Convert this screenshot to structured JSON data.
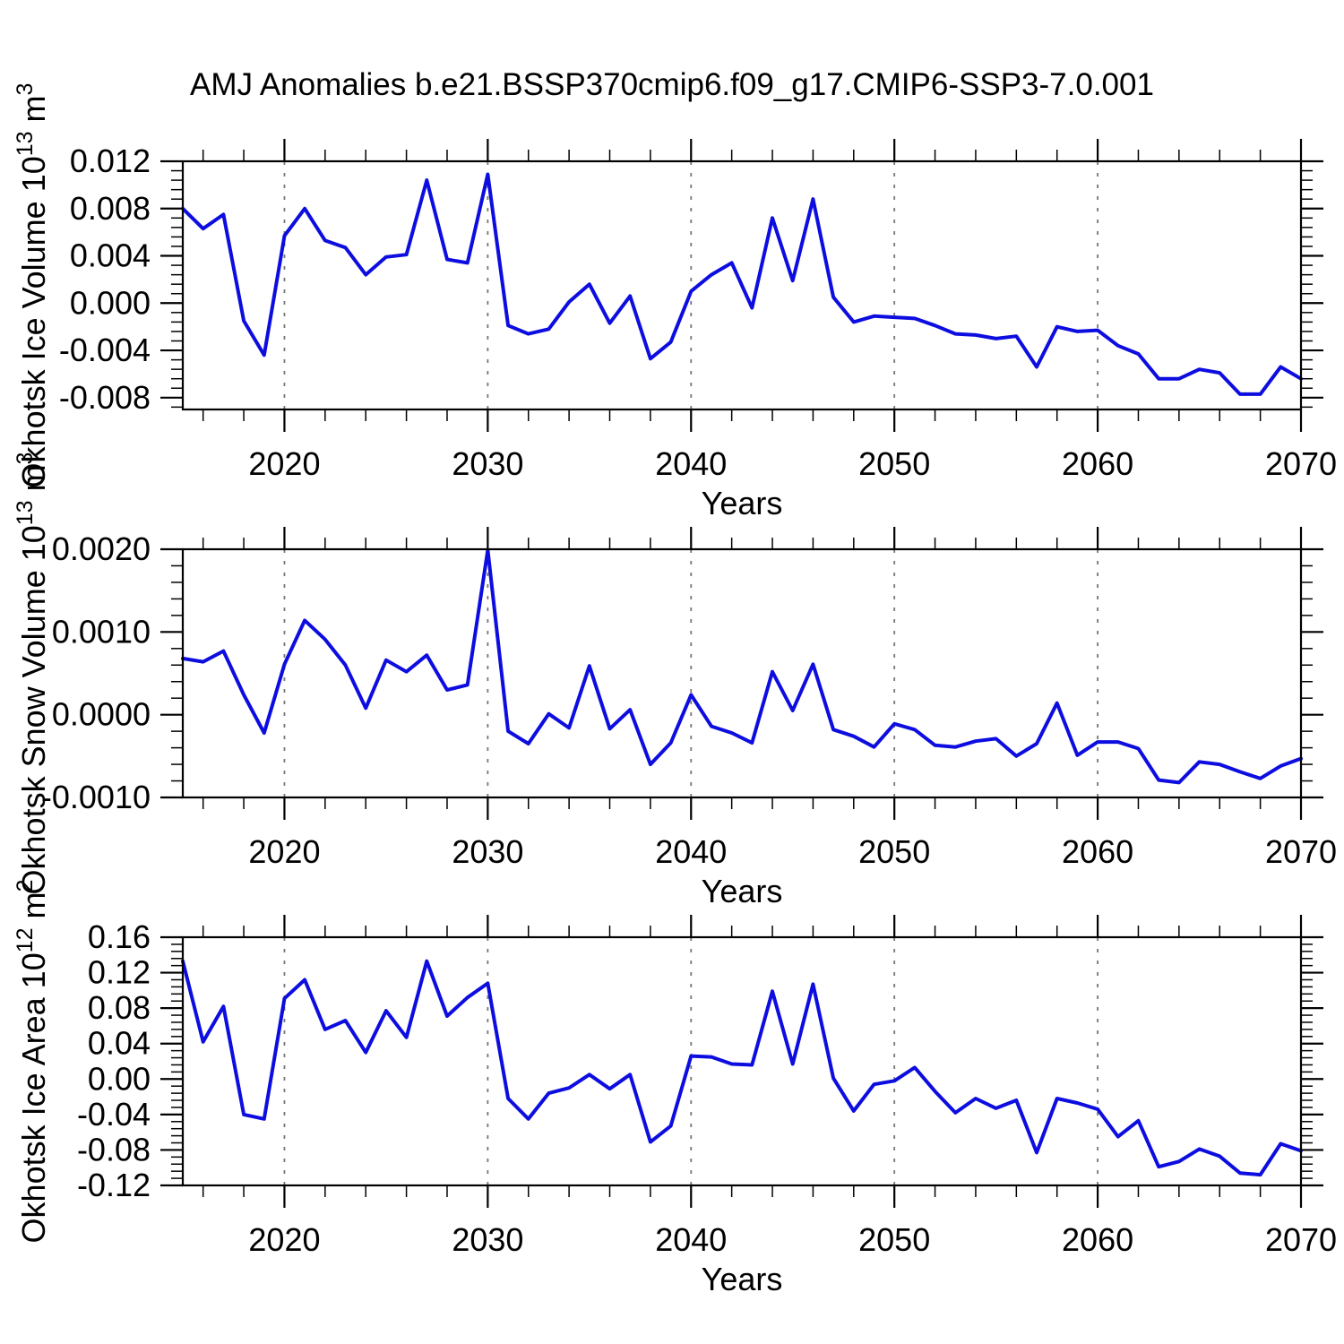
{
  "title": "AMJ Anomalies b.e21.BSSP370cmip6.f09_g17.CMIP6-SSP3-7.0.001",
  "chart_data": [
    {
      "type": "line",
      "name": "okhotsk-ice-volume",
      "xlabel": "Years",
      "ylabel_parts": [
        {
          "t": "Okhotsk Ice Volume 10",
          "sup": false
        },
        {
          "t": "13",
          "sup": true
        },
        {
          "t": " m",
          "sup": false
        },
        {
          "t": "3",
          "sup": true
        }
      ],
      "x_range": [
        2015,
        2070
      ],
      "y_range": [
        -0.009,
        0.012
      ],
      "xticks": {
        "values": [
          2020,
          2030,
          2040,
          2050,
          2060,
          2070
        ],
        "labels": [
          "2020",
          "2030",
          "2040",
          "2050",
          "2060",
          "2070"
        ],
        "minor_step": 2
      },
      "yticks": {
        "values": [
          0.012,
          0.008,
          0.004,
          0.0,
          -0.004,
          -0.008
        ],
        "labels": [
          "0.012",
          "0.008",
          "0.004",
          "0.000",
          "-0.004",
          "-0.008"
        ],
        "major_step": 0.004,
        "minor_step": 0.0008
      },
      "x_gridlines": [
        2020,
        2030,
        2040,
        2050,
        2060
      ],
      "grid_color": "#777777",
      "line_color": "#0d0de0",
      "x": [
        2015,
        2016,
        2017,
        2018,
        2019,
        2020,
        2021,
        2022,
        2023,
        2024,
        2025,
        2026,
        2027,
        2028,
        2029,
        2030,
        2031,
        2032,
        2033,
        2034,
        2035,
        2036,
        2037,
        2038,
        2039,
        2040,
        2041,
        2042,
        2043,
        2044,
        2045,
        2046,
        2047,
        2048,
        2049,
        2050,
        2051,
        2052,
        2053,
        2054,
        2055,
        2056,
        2057,
        2058,
        2059,
        2060,
        2061,
        2062,
        2063,
        2064,
        2065,
        2066,
        2067,
        2068,
        2069,
        2070
      ],
      "values": [
        0.008,
        0.0063,
        0.0075,
        -0.0015,
        -0.0044,
        0.0057,
        0.008,
        0.0053,
        0.0047,
        0.0024,
        0.0039,
        0.0041,
        0.0104,
        0.0037,
        0.0034,
        0.0109,
        -0.0019,
        -0.0026,
        -0.0022,
        0.0001,
        0.0016,
        -0.0017,
        0.0006,
        -0.0047,
        -0.0033,
        0.001,
        0.0024,
        0.0034,
        -0.0004,
        0.0072,
        0.0019,
        0.0088,
        0.0005,
        -0.0016,
        -0.0011,
        -0.0012,
        -0.0013,
        -0.0019,
        -0.0026,
        -0.0027,
        -0.003,
        -0.0028,
        -0.0054,
        -0.002,
        -0.0024,
        -0.0023,
        -0.0036,
        -0.0043,
        -0.0064,
        -0.0064,
        -0.0056,
        -0.0059,
        -0.0077,
        -0.0077,
        -0.0054,
        -0.0064
      ]
    },
    {
      "type": "line",
      "name": "okhotsk-snow-volume",
      "xlabel": "Years",
      "ylabel_parts": [
        {
          "t": "Okhotsk Snow Volume 10",
          "sup": false
        },
        {
          "t": "13",
          "sup": true
        },
        {
          "t": " m",
          "sup": false
        },
        {
          "t": "3",
          "sup": true
        }
      ],
      "x_range": [
        2015,
        2070
      ],
      "y_range": [
        -0.001,
        0.002
      ],
      "xticks": {
        "values": [
          2020,
          2030,
          2040,
          2050,
          2060,
          2070
        ],
        "labels": [
          "2020",
          "2030",
          "2040",
          "2050",
          "2060",
          "2070"
        ],
        "minor_step": 2
      },
      "yticks": {
        "values": [
          0.002,
          0.001,
          0.0,
          -0.001
        ],
        "labels": [
          "0.0020",
          "0.0010",
          "0.0000",
          "-0.0010"
        ],
        "major_step": 0.001,
        "minor_step": 0.0002
      },
      "x_gridlines": [
        2020,
        2030,
        2040,
        2050,
        2060
      ],
      "grid_color": "#777777",
      "line_color": "#0d0de0",
      "x": [
        2015,
        2016,
        2017,
        2018,
        2019,
        2020,
        2021,
        2022,
        2023,
        2024,
        2025,
        2026,
        2027,
        2028,
        2029,
        2030,
        2031,
        2032,
        2033,
        2034,
        2035,
        2036,
        2037,
        2038,
        2039,
        2040,
        2041,
        2042,
        2043,
        2044,
        2045,
        2046,
        2047,
        2048,
        2049,
        2050,
        2051,
        2052,
        2053,
        2054,
        2055,
        2056,
        2057,
        2058,
        2059,
        2060,
        2061,
        2062,
        2063,
        2064,
        2065,
        2066,
        2067,
        2068,
        2069,
        2070
      ],
      "values": [
        0.00068,
        0.00064,
        0.00077,
        0.00024,
        -0.00022,
        0.00061,
        0.00114,
        0.00091,
        0.0006,
        8e-05,
        0.00066,
        0.00052,
        0.00072,
        0.0003,
        0.00036,
        0.00199,
        -0.0002,
        -0.00035,
        1e-05,
        -0.00016,
        0.00059,
        -0.00017,
        6e-05,
        -0.0006,
        -0.00034,
        0.00024,
        -0.00014,
        -0.00022,
        -0.00034,
        0.00052,
        5e-05,
        0.00061,
        -0.00018,
        -0.00026,
        -0.00039,
        -0.00011,
        -0.00018,
        -0.00037,
        -0.00039,
        -0.00032,
        -0.00029,
        -0.0005,
        -0.00035,
        0.00014,
        -0.00049,
        -0.00033,
        -0.00033,
        -0.00041,
        -0.00079,
        -0.00082,
        -0.00057,
        -0.0006,
        -0.00069,
        -0.00077,
        -0.00062,
        -0.00053
      ]
    },
    {
      "type": "line",
      "name": "okhotsk-ice-area",
      "xlabel": "Years",
      "ylabel_parts": [
        {
          "t": "Okhotsk Ice Area 10",
          "sup": false
        },
        {
          "t": "12",
          "sup": true
        },
        {
          "t": " m",
          "sup": false
        },
        {
          "t": "2",
          "sup": true
        }
      ],
      "x_range": [
        2015,
        2070
      ],
      "y_range": [
        -0.12,
        0.16
      ],
      "xticks": {
        "values": [
          2020,
          2030,
          2040,
          2050,
          2060,
          2070
        ],
        "labels": [
          "2020",
          "2030",
          "2040",
          "2050",
          "2060",
          "2070"
        ],
        "minor_step": 2
      },
      "yticks": {
        "values": [
          0.16,
          0.12,
          0.08,
          0.04,
          0.0,
          -0.04,
          -0.08,
          -0.12
        ],
        "labels": [
          "0.16",
          "0.12",
          "0.08",
          "0.04",
          "0.00",
          "-0.04",
          "-0.08",
          "-0.12"
        ],
        "major_step": 0.04,
        "minor_step": 0.008
      },
      "x_gridlines": [
        2020,
        2030,
        2040,
        2050,
        2060
      ],
      "grid_color": "#777777",
      "line_color": "#0d0de0",
      "x": [
        2015,
        2016,
        2017,
        2018,
        2019,
        2020,
        2021,
        2022,
        2023,
        2024,
        2025,
        2026,
        2027,
        2028,
        2029,
        2030,
        2031,
        2032,
        2033,
        2034,
        2035,
        2036,
        2037,
        2038,
        2039,
        2040,
        2041,
        2042,
        2043,
        2044,
        2045,
        2046,
        2047,
        2048,
        2049,
        2050,
        2051,
        2052,
        2053,
        2054,
        2055,
        2056,
        2057,
        2058,
        2059,
        2060,
        2061,
        2062,
        2063,
        2064,
        2065,
        2066,
        2067,
        2068,
        2069,
        2070
      ],
      "values": [
        0.133,
        0.042,
        0.082,
        -0.04,
        -0.045,
        0.091,
        0.112,
        0.056,
        0.066,
        0.03,
        0.077,
        0.047,
        0.133,
        0.071,
        0.092,
        0.108,
        -0.022,
        -0.045,
        -0.016,
        -0.01,
        0.005,
        -0.011,
        0.005,
        -0.071,
        -0.053,
        0.026,
        0.025,
        0.017,
        0.016,
        0.099,
        0.017,
        0.107,
        0.001,
        -0.036,
        -0.006,
        -0.002,
        0.013,
        -0.014,
        -0.038,
        -0.022,
        -0.033,
        -0.024,
        -0.083,
        -0.022,
        -0.027,
        -0.034,
        -0.065,
        -0.047,
        -0.099,
        -0.093,
        -0.079,
        -0.087,
        -0.106,
        -0.108,
        -0.073,
        -0.081
      ]
    }
  ]
}
